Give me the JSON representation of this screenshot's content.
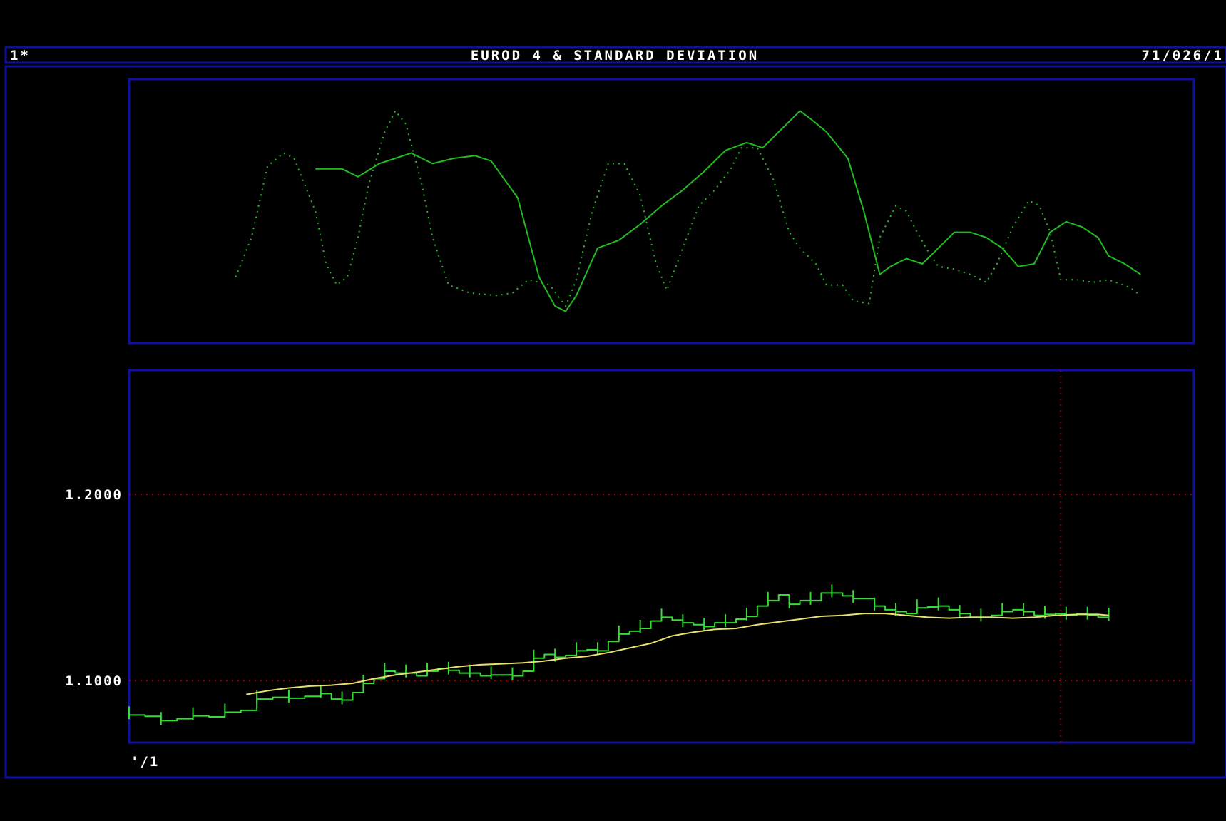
{
  "header": {
    "left": "1*",
    "title": "EUROD 4 & STANDARD DEVIATION",
    "right": "71/026/1"
  },
  "colors": {
    "background": "#000000",
    "frame": "#1010a0",
    "grid": "#a00000",
    "price": "#33dd33",
    "ma": "#e8e070",
    "std": "#22bb22",
    "text": "#ffffff"
  },
  "chart_data": [
    {
      "type": "line",
      "panel": "upper",
      "x_range": [
        0,
        200
      ],
      "y_range": [
        0,
        1
      ],
      "grid": false,
      "series": [
        {
          "style": "solid",
          "points": [
            [
              35,
              0.66
            ],
            [
              40,
              0.66
            ],
            [
              43,
              0.63
            ],
            [
              47,
              0.68
            ],
            [
              50,
              0.7
            ],
            [
              53,
              0.72
            ],
            [
              57,
              0.68
            ],
            [
              61,
              0.7
            ],
            [
              65,
              0.71
            ],
            [
              68,
              0.69
            ],
            [
              73,
              0.55
            ],
            [
              77,
              0.25
            ],
            [
              80,
              0.14
            ],
            [
              82,
              0.12
            ],
            [
              84,
              0.18
            ],
            [
              88,
              0.36
            ],
            [
              92,
              0.39
            ],
            [
              96,
              0.45
            ],
            [
              100,
              0.52
            ],
            [
              104,
              0.58
            ],
            [
              108,
              0.65
            ],
            [
              112,
              0.73
            ],
            [
              116,
              0.76
            ],
            [
              119,
              0.74
            ],
            [
              122,
              0.8
            ],
            [
              126,
              0.88
            ],
            [
              128,
              0.85
            ],
            [
              131,
              0.8
            ],
            [
              135,
              0.7
            ],
            [
              138,
              0.5
            ],
            [
              141,
              0.26
            ],
            [
              143,
              0.29
            ],
            [
              146,
              0.32
            ],
            [
              149,
              0.3
            ],
            [
              152,
              0.36
            ],
            [
              155,
              0.42
            ],
            [
              158,
              0.42
            ],
            [
              161,
              0.4
            ],
            [
              164,
              0.36
            ],
            [
              167,
              0.29
            ],
            [
              170,
              0.3
            ],
            [
              173,
              0.42
            ],
            [
              176,
              0.46
            ],
            [
              179,
              0.44
            ],
            [
              182,
              0.4
            ],
            [
              184,
              0.33
            ],
            [
              187,
              0.3
            ],
            [
              190,
              0.26
            ]
          ]
        },
        {
          "style": "dotted",
          "points": [
            [
              20,
              0.25
            ],
            [
              23,
              0.4
            ],
            [
              26,
              0.67
            ],
            [
              29,
              0.72
            ],
            [
              31,
              0.7
            ],
            [
              33,
              0.6
            ],
            [
              35,
              0.5
            ],
            [
              37,
              0.3
            ],
            [
              39,
              0.22
            ],
            [
              41,
              0.25
            ],
            [
              43,
              0.4
            ],
            [
              45,
              0.6
            ],
            [
              48,
              0.8
            ],
            [
              50,
              0.88
            ],
            [
              52,
              0.83
            ],
            [
              55,
              0.6
            ],
            [
              57,
              0.4
            ],
            [
              60,
              0.22
            ],
            [
              64,
              0.19
            ],
            [
              69,
              0.18
            ],
            [
              72,
              0.19
            ],
            [
              75,
              0.24
            ],
            [
              79,
              0.22
            ],
            [
              82,
              0.14
            ],
            [
              84,
              0.24
            ],
            [
              87,
              0.5
            ],
            [
              90,
              0.68
            ],
            [
              93,
              0.68
            ],
            [
              96,
              0.56
            ],
            [
              99,
              0.3
            ],
            [
              101,
              0.2
            ],
            [
              104,
              0.36
            ],
            [
              107,
              0.52
            ],
            [
              110,
              0.58
            ],
            [
              113,
              0.66
            ],
            [
              115,
              0.74
            ],
            [
              118,
              0.74
            ],
            [
              121,
              0.62
            ],
            [
              124,
              0.42
            ],
            [
              126,
              0.36
            ],
            [
              129,
              0.3
            ],
            [
              131,
              0.22
            ],
            [
              134,
              0.22
            ],
            [
              136,
              0.16
            ],
            [
              139,
              0.15
            ],
            [
              141,
              0.4
            ],
            [
              144,
              0.52
            ],
            [
              146,
              0.5
            ],
            [
              148,
              0.42
            ],
            [
              150,
              0.35
            ],
            [
              152,
              0.29
            ],
            [
              155,
              0.28
            ],
            [
              158,
              0.26
            ],
            [
              161,
              0.23
            ],
            [
              163,
              0.3
            ],
            [
              166,
              0.44
            ],
            [
              169,
              0.54
            ],
            [
              171,
              0.52
            ],
            [
              173,
              0.42
            ],
            [
              175,
              0.24
            ],
            [
              178,
              0.24
            ],
            [
              181,
              0.23
            ],
            [
              184,
              0.24
            ],
            [
              188,
              0.21
            ],
            [
              190,
              0.18
            ]
          ]
        }
      ]
    },
    {
      "type": "line",
      "panel": "lower",
      "x_range": [
        0,
        200
      ],
      "y_range": [
        1.0667,
        1.2667
      ],
      "grid": true,
      "y_ticks": [
        {
          "value": 1.2,
          "label": "1.2000"
        },
        {
          "value": 1.1,
          "label": "1.1000"
        }
      ],
      "x_tick_label": "'/1",
      "x_gridline": 175,
      "series": [
        {
          "style": "step",
          "points": [
            [
              0,
              1.0815
            ],
            [
              3,
              1.0808
            ],
            [
              6,
              1.0785
            ],
            [
              9,
              1.0795
            ],
            [
              12,
              1.081
            ],
            [
              15,
              1.0805
            ],
            [
              18,
              1.083
            ],
            [
              21,
              1.084
            ],
            [
              24,
              1.09
            ],
            [
              27,
              1.091
            ],
            [
              30,
              1.0905
            ],
            [
              33,
              1.0915
            ],
            [
              36,
              1.093
            ],
            [
              38,
              1.09
            ],
            [
              40,
              1.0895
            ],
            [
              42,
              1.0935
            ],
            [
              44,
              1.0985
            ],
            [
              46,
              1.101
            ],
            [
              48,
              1.105
            ],
            [
              50,
              1.104
            ],
            [
              52,
              1.104
            ],
            [
              54,
              1.1025
            ],
            [
              56,
              1.105
            ],
            [
              58,
              1.1065
            ],
            [
              60,
              1.1055
            ],
            [
              62,
              1.104
            ],
            [
              64,
              1.104
            ],
            [
              66,
              1.1025
            ],
            [
              68,
              1.103
            ],
            [
              70,
              1.103
            ],
            [
              72,
              1.1025
            ],
            [
              74,
              1.105
            ],
            [
              76,
              1.112
            ],
            [
              78,
              1.114
            ],
            [
              80,
              1.1125
            ],
            [
              82,
              1.1135
            ],
            [
              84,
              1.116
            ],
            [
              86,
              1.1165
            ],
            [
              88,
              1.116
            ],
            [
              90,
              1.121
            ],
            [
              92,
              1.125
            ],
            [
              94,
              1.1265
            ],
            [
              96,
              1.128
            ],
            [
              98,
              1.132
            ],
            [
              100,
              1.134
            ],
            [
              102,
              1.1325
            ],
            [
              104,
              1.131
            ],
            [
              106,
              1.13
            ],
            [
              108,
              1.129
            ],
            [
              110,
              1.131
            ],
            [
              112,
              1.131
            ],
            [
              114,
              1.133
            ],
            [
              116,
              1.1345
            ],
            [
              118,
              1.14
            ],
            [
              120,
              1.143
            ],
            [
              122,
              1.146
            ],
            [
              124,
              1.141
            ],
            [
              126,
              1.143
            ],
            [
              128,
              1.143
            ],
            [
              130,
              1.147
            ],
            [
              132,
              1.147
            ],
            [
              134,
              1.1455
            ],
            [
              136,
              1.144
            ],
            [
              138,
              1.144
            ],
            [
              140,
              1.14
            ],
            [
              142,
              1.138
            ],
            [
              144,
              1.137
            ],
            [
              146,
              1.136
            ],
            [
              148,
              1.139
            ],
            [
              150,
              1.1395
            ],
            [
              152,
              1.14
            ],
            [
              154,
              1.138
            ],
            [
              156,
              1.136
            ],
            [
              158,
              1.134
            ],
            [
              160,
              1.134
            ],
            [
              162,
              1.135
            ],
            [
              164,
              1.137
            ],
            [
              166,
              1.138
            ],
            [
              168,
              1.137
            ],
            [
              170,
              1.135
            ],
            [
              172,
              1.1355
            ],
            [
              174,
              1.136
            ],
            [
              176,
              1.135
            ],
            [
              178,
              1.136
            ],
            [
              180,
              1.135
            ],
            [
              182,
              1.134
            ],
            [
              184,
              1.1345
            ]
          ]
        },
        {
          "style": "solid",
          "points": [
            [
              22,
              1.0925
            ],
            [
              26,
              1.0945
            ],
            [
              30,
              1.096
            ],
            [
              34,
              1.097
            ],
            [
              38,
              1.0975
            ],
            [
              42,
              1.0985
            ],
            [
              46,
              1.101
            ],
            [
              50,
              1.103
            ],
            [
              54,
              1.1045
            ],
            [
              58,
              1.106
            ],
            [
              62,
              1.1075
            ],
            [
              66,
              1.1085
            ],
            [
              70,
              1.109
            ],
            [
              74,
              1.1095
            ],
            [
              78,
              1.1105
            ],
            [
              82,
              1.112
            ],
            [
              86,
              1.113
            ],
            [
              90,
              1.115
            ],
            [
              94,
              1.1175
            ],
            [
              98,
              1.12
            ],
            [
              102,
              1.124
            ],
            [
              106,
              1.126
            ],
            [
              110,
              1.1275
            ],
            [
              114,
              1.128
            ],
            [
              118,
              1.13
            ],
            [
              122,
              1.1315
            ],
            [
              126,
              1.133
            ],
            [
              130,
              1.1345
            ],
            [
              134,
              1.135
            ],
            [
              138,
              1.136
            ],
            [
              142,
              1.136
            ],
            [
              146,
              1.135
            ],
            [
              150,
              1.134
            ],
            [
              154,
              1.1335
            ],
            [
              158,
              1.134
            ],
            [
              162,
              1.134
            ],
            [
              166,
              1.1335
            ],
            [
              170,
              1.134
            ],
            [
              174,
              1.135
            ],
            [
              178,
              1.1355
            ],
            [
              182,
              1.1355
            ],
            [
              184,
              1.135
            ]
          ]
        }
      ]
    }
  ]
}
